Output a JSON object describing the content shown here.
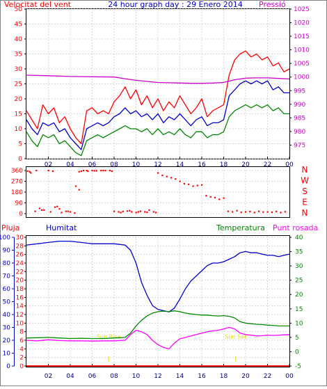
{
  "chart_data": [
    {
      "type": "line",
      "title": "24 hour graph day : 29 Enero 2014",
      "left_axis_label": "Velocitat del vent",
      "right_axis_label": "Pressió",
      "left_ylim": [
        0,
        50
      ],
      "left_ticks": [
        "0",
        "5",
        "10",
        "15",
        "20",
        "25",
        "30",
        "35",
        "40",
        "45",
        "50"
      ],
      "right_ylim": [
        970,
        1025
      ],
      "right_ticks": [
        "975",
        "980",
        "985",
        "990",
        "995",
        "1000",
        "1005",
        "1010",
        "1015",
        "1020",
        "1025"
      ],
      "x_ticks": [
        "02",
        "04",
        "06",
        "08",
        "10",
        "12",
        "14",
        "16",
        "18",
        "20",
        "22",
        "00"
      ],
      "grid": true,
      "series": [
        {
          "role": "gust",
          "axis": "left",
          "color": "#ff0000",
          "x": [
            0,
            0.5,
            1,
            1.5,
            2,
            2.5,
            3,
            3.5,
            4,
            4.5,
            5,
            5.5,
            6,
            6.5,
            7,
            7.5,
            8,
            8.5,
            9,
            9.5,
            10,
            10.5,
            11,
            11.5,
            12,
            12.5,
            13,
            13.5,
            14,
            14.5,
            15,
            15.5,
            16,
            16.5,
            17,
            17.5,
            18,
            18.5,
            19,
            19.5,
            20,
            20.5,
            21,
            21.5,
            22,
            22.5,
            23,
            23.5,
            24
          ],
          "values": [
            16,
            13,
            10,
            18,
            15,
            17,
            12,
            14,
            10,
            7,
            5,
            16,
            17,
            15,
            16,
            15,
            19,
            21,
            24,
            20,
            23,
            18,
            21,
            17,
            20,
            16,
            19,
            17,
            21,
            18,
            15,
            17,
            20,
            14,
            16,
            17,
            18,
            28,
            33,
            35,
            36,
            34,
            35,
            33,
            34,
            31,
            32,
            29,
            30
          ]
        },
        {
          "role": "average",
          "axis": "left",
          "color": "#0000cc",
          "x": [
            0,
            0.5,
            1,
            1.5,
            2,
            2.5,
            3,
            3.5,
            4,
            4.5,
            5,
            5.5,
            6,
            6.5,
            7,
            7.5,
            8,
            8.5,
            9,
            9.5,
            10,
            10.5,
            11,
            11.5,
            12,
            12.5,
            13,
            13.5,
            14,
            14.5,
            15,
            15.5,
            16,
            16.5,
            17,
            17.5,
            18,
            18.5,
            19,
            19.5,
            20,
            20.5,
            21,
            21.5,
            22,
            22.5,
            23,
            23.5,
            24
          ],
          "values": [
            13,
            10,
            8,
            12,
            11,
            12,
            9,
            10,
            7,
            5,
            3,
            10,
            11,
            12,
            11,
            12,
            14,
            15,
            17,
            15,
            16,
            14,
            15,
            13,
            15,
            12,
            14,
            13,
            15,
            13,
            11,
            13,
            14,
            11,
            12,
            12,
            13,
            21,
            23,
            25,
            26,
            25,
            26,
            25,
            26,
            23,
            24,
            22,
            22
          ]
        },
        {
          "role": "minimum",
          "axis": "left",
          "color": "#008800",
          "x": [
            0,
            0.5,
            1,
            1.5,
            2,
            2.5,
            3,
            3.5,
            4,
            4.5,
            5,
            5.5,
            6,
            6.5,
            7,
            7.5,
            8,
            8.5,
            9,
            9.5,
            10,
            10.5,
            11,
            11.5,
            12,
            12.5,
            13,
            13.5,
            14,
            14.5,
            15,
            15.5,
            16,
            16.5,
            17,
            17.5,
            18,
            18.5,
            19,
            19.5,
            20,
            20.5,
            21,
            21.5,
            22,
            22.5,
            23,
            23.5,
            24
          ],
          "values": [
            9,
            6,
            4,
            8,
            7,
            8,
            5,
            6,
            4,
            2,
            1,
            6,
            7,
            8,
            7,
            8,
            9,
            10,
            11,
            10,
            10,
            9,
            10,
            8,
            10,
            8,
            9,
            8,
            10,
            8,
            7,
            9,
            9,
            7,
            8,
            8,
            9,
            14,
            16,
            17,
            18,
            17,
            18,
            17,
            18,
            16,
            17,
            15,
            15
          ]
        },
        {
          "role": "pressure",
          "axis": "right",
          "color": "#cc00cc",
          "x": [
            0,
            2,
            4,
            6,
            8,
            9,
            10,
            11,
            12,
            13,
            14,
            15,
            16,
            17,
            18,
            19,
            20,
            21,
            22,
            23,
            24
          ],
          "values": [
            1000.7,
            1000.5,
            1000.2,
            1000.1,
            1000.0,
            999.4,
            998.8,
            998.4,
            998.0,
            997.9,
            997.8,
            997.7,
            997.7,
            997.8,
            998.0,
            999.0,
            999.6,
            999.7,
            999.7,
            999.5,
            999.3
          ]
        }
      ]
    },
    {
      "type": "scatter",
      "series_name": "Wind direction",
      "ylim": [
        0,
        360
      ],
      "y_ticks": [
        "0",
        "90",
        "180",
        "270",
        "360"
      ],
      "right_labels": [
        "N",
        "W",
        "S",
        "E",
        "N"
      ],
      "x_ticks": [
        "02",
        "04",
        "06",
        "08",
        "10",
        "12",
        "14",
        "16",
        "18",
        "20",
        "22",
        "00"
      ],
      "grid": true,
      "color": "#ff0000",
      "x": [
        0.1,
        0.4,
        0.8,
        1.2,
        1.6,
        2.0,
        2.4,
        2.8,
        3.2,
        3.6,
        4.0,
        4.4,
        4.8,
        5.2,
        5.6,
        6.0,
        6.4,
        6.8,
        7.2,
        7.6,
        8.0,
        8.4,
        8.8,
        9.2,
        9.6,
        10.0,
        10.4,
        10.8,
        11.2,
        11.6,
        12.0,
        12.4,
        12.8,
        13.2,
        13.6,
        14.0,
        14.4,
        14.8,
        15.2,
        15.6,
        16.0,
        16.4,
        16.8,
        17.2,
        17.6,
        18.0,
        18.4,
        18.8,
        19.2,
        19.6,
        20.0,
        20.4,
        20.8,
        21.2,
        21.6,
        22.0,
        22.4,
        22.8,
        23.2,
        23.6,
        0.3,
        0.9,
        1.4,
        2.2,
        3.0,
        3.8,
        5.0,
        5.5,
        6.2,
        7.0,
        7.8,
        8.6,
        9.4,
        10.2,
        11.0,
        11.8,
        4.5,
        4.8,
        2.6
      ],
      "values": [
        355,
        340,
        20,
        45,
        30,
        360,
        355,
        60,
        10,
        20,
        15,
        5,
        350,
        360,
        355,
        360,
        358,
        360,
        360,
        360,
        20,
        15,
        18,
        22,
        15,
        10,
        20,
        15,
        30,
        15,
        340,
        320,
        310,
        300,
        290,
        270,
        250,
        245,
        230,
        235,
        240,
        150,
        140,
        135,
        120,
        130,
        20,
        15,
        25,
        12,
        15,
        18,
        10,
        20,
        14,
        15,
        12,
        18,
        10,
        16,
        350,
        360,
        30,
        15,
        40,
        20,
        355,
        360,
        358,
        360,
        355,
        10,
        25,
        15,
        12,
        10,
        230,
        200,
        55
      ]
    },
    {
      "type": "line",
      "left_axis_labels": [
        "Pluja",
        "Humitat"
      ],
      "right_axis_labels": [
        "Temperatura",
        "Punt rosada"
      ],
      "rain_ylim": [
        0,
        30
      ],
      "rain_ticks": [
        "0",
        "2",
        "4",
        "6",
        "8",
        "10",
        "12",
        "14",
        "16",
        "18",
        "20",
        "22",
        "24",
        "26",
        "28",
        "30"
      ],
      "humidity_ylim": [
        0,
        100
      ],
      "humidity_ticks": [
        "0",
        "10",
        "20",
        "30",
        "40",
        "50",
        "60",
        "70",
        "80",
        "90",
        "100"
      ],
      "temp_ylim": [
        -5,
        40
      ],
      "temp_ticks": [
        "-5",
        "0",
        "5",
        "10",
        "15",
        "20",
        "25",
        "30",
        "35",
        "40"
      ],
      "x_ticks": [
        "02",
        "04",
        "06",
        "08",
        "10",
        "12",
        "14",
        "16",
        "18",
        "20",
        "22",
        "00"
      ],
      "grid": true,
      "annotations": [
        {
          "text": "Sun Rise",
          "x": 7.5,
          "color": "#dddd00"
        },
        {
          "text": "Sun Set",
          "x": 19.1,
          "color": "#dddd00"
        }
      ],
      "series": [
        {
          "role": "humidity",
          "axis": "humidity",
          "color": "#0000cc",
          "x": [
            0,
            1,
            2,
            3,
            4,
            5,
            6,
            7,
            8,
            9,
            9.5,
            10,
            10.5,
            11,
            11.5,
            12,
            12.5,
            13,
            13.5,
            14,
            14.5,
            15,
            15.5,
            16,
            16.5,
            17,
            17.5,
            18,
            18.5,
            19,
            19.5,
            20,
            20.5,
            21,
            21.5,
            22,
            22.5,
            23,
            23.5,
            24
          ],
          "values": [
            94,
            95,
            96,
            97,
            97,
            96,
            95,
            95,
            95,
            94,
            90,
            80,
            65,
            55,
            47,
            44,
            43,
            42,
            45,
            52,
            60,
            66,
            70,
            74,
            78,
            80,
            80,
            81,
            83,
            85,
            88,
            89,
            88,
            88,
            87,
            86,
            86,
            85,
            86,
            87
          ]
        },
        {
          "role": "temperature",
          "axis": "temp",
          "color": "#008800",
          "x": [
            0,
            1,
            2,
            3,
            4,
            5,
            6,
            7,
            8,
            9,
            9.5,
            10,
            10.5,
            11,
            11.5,
            12,
            12.5,
            13,
            13.5,
            14,
            14.5,
            15,
            15.5,
            16,
            16.5,
            17,
            17.5,
            18,
            18.5,
            19,
            19.5,
            20,
            20.5,
            21,
            21.5,
            22,
            22.5,
            23,
            23.5,
            24
          ],
          "values": [
            4.8,
            4.9,
            5.0,
            4.8,
            4.6,
            4.7,
            4.6,
            4.6,
            4.8,
            5.0,
            6.5,
            9.0,
            11.0,
            12.5,
            13.5,
            14.0,
            14.2,
            14.0,
            14.3,
            14.0,
            13.5,
            13.2,
            13.0,
            12.8,
            12.8,
            12.6,
            12.5,
            12.6,
            12.4,
            11.8,
            10.5,
            10.0,
            9.8,
            9.6,
            9.5,
            9.3,
            9.2,
            9.0,
            9.0,
            9.0
          ]
        },
        {
          "role": "dew_point",
          "axis": "temp",
          "color": "#ff00ff",
          "x": [
            0,
            1,
            2,
            3,
            4,
            5,
            6,
            7,
            8,
            9,
            9.5,
            10,
            10.5,
            11,
            11.5,
            12,
            12.5,
            13,
            13.5,
            14,
            14.5,
            15,
            15.5,
            16,
            16.5,
            17,
            17.5,
            18,
            18.5,
            19,
            19.5,
            20,
            20.5,
            21,
            21.5,
            22,
            22.5,
            23,
            23.5,
            24
          ],
          "values": [
            4.0,
            3.8,
            4.2,
            3.9,
            3.8,
            3.8,
            3.7,
            3.8,
            3.8,
            4.0,
            6.0,
            7.5,
            7.0,
            6.0,
            4.0,
            2.5,
            1.5,
            1.0,
            3.0,
            4.5,
            5.0,
            5.5,
            6.0,
            6.5,
            7.0,
            7.3,
            7.5,
            8.0,
            8.5,
            8.0,
            6.5,
            6.0,
            5.8,
            5.5,
            5.6,
            5.8,
            5.7,
            5.8,
            5.9,
            6.0
          ]
        },
        {
          "role": "rain",
          "axis": "rain",
          "color": "#ff0000",
          "x": [
            0,
            24
          ],
          "values": [
            0,
            0
          ]
        }
      ]
    }
  ]
}
